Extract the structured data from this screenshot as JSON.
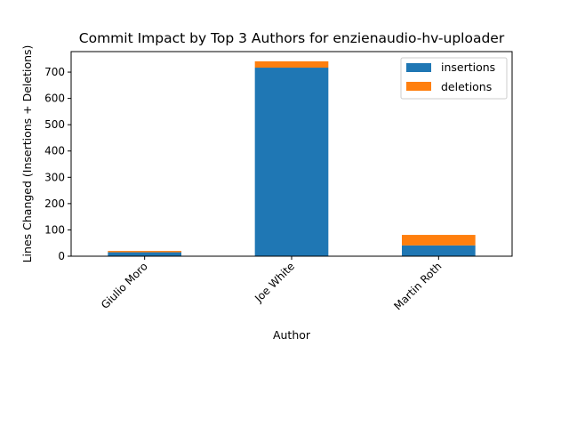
{
  "chart_data": {
    "type": "bar",
    "stacked": true,
    "title": "Commit Impact by Top 3 Authors for enzienaudio-hv-uploader",
    "xlabel": "Author",
    "ylabel": "Lines Changed (Insertions + Deletions)",
    "categories": [
      "Giulio Moro",
      "Joe White",
      "Martin Roth"
    ],
    "series": [
      {
        "name": "insertions",
        "values": [
          15,
          717,
          41
        ],
        "color": "#1f77b4"
      },
      {
        "name": "deletions",
        "values": [
          5,
          24,
          40
        ],
        "color": "#ff7f0e"
      }
    ],
    "ylim": [
      0,
      778
    ],
    "yticks": [
      0,
      100,
      200,
      300,
      400,
      500,
      600,
      700
    ],
    "grid": false,
    "legend": "top-right",
    "xtick_rotation": 45
  }
}
